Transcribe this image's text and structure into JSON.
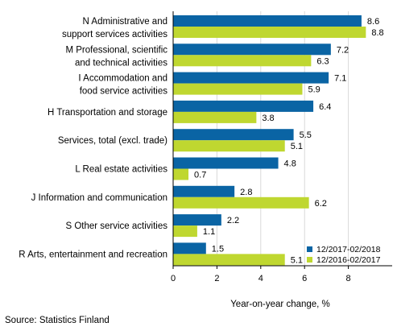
{
  "chart_data": {
    "type": "bar",
    "orientation": "horizontal",
    "categories": [
      [
        "N Administrative and",
        "support services activities"
      ],
      [
        "M Professional, scientific",
        "and technical activities"
      ],
      [
        "I Accommodation and",
        "food service activities"
      ],
      [
        "H Transportation and storage"
      ],
      [
        "Services, total (excl. trade)"
      ],
      [
        "L Real estate activities"
      ],
      [
        "J Information and communication"
      ],
      [
        "S Other service activities"
      ],
      [
        "R Arts, entertainment and recreation"
      ]
    ],
    "series": [
      {
        "name": "12/2017-02/2018",
        "color": "#0a64a4",
        "values": [
          8.6,
          7.2,
          7.1,
          6.4,
          5.5,
          4.8,
          2.8,
          2.2,
          1.5
        ]
      },
      {
        "name": "12/2016-02/2017",
        "color": "#bfd730",
        "values": [
          8.8,
          6.3,
          5.9,
          3.8,
          5.1,
          0.7,
          6.2,
          1.1,
          5.1
        ]
      }
    ],
    "value_labels": [
      [
        "8.6",
        "7.2",
        "7.1",
        "6.4",
        "5.5",
        "4.8",
        "2.8",
        "2.2",
        "1.5"
      ],
      [
        "8.8",
        "6.3",
        "5.9",
        "3.8",
        "5.1",
        "0.7",
        "6.2",
        "1.1",
        "5.1"
      ]
    ],
    "xticks": [
      "0",
      "2",
      "4",
      "6",
      "8"
    ],
    "xlim": [
      0,
      10
    ],
    "xlabel": "Year-on-year change, %",
    "grid": "vertical",
    "legend": "bottom-right"
  },
  "source": "Source: Statistics Finland"
}
